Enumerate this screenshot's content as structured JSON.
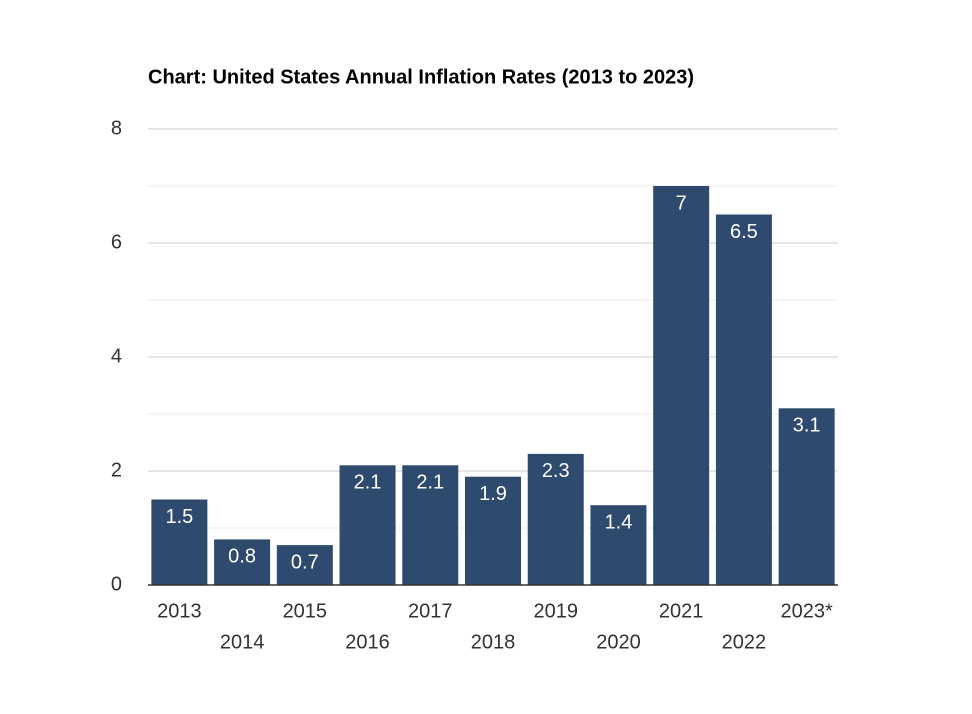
{
  "chart_data": {
    "type": "bar",
    "title": "Chart: United States Annual Inflation Rates (2013 to 2023)",
    "categories": [
      "2013",
      "2014",
      "2015",
      "2016",
      "2017",
      "2018",
      "2019",
      "2020",
      "2021",
      "2022",
      "2023*"
    ],
    "values": [
      1.5,
      0.8,
      0.7,
      2.1,
      2.1,
      1.9,
      2.3,
      1.4,
      7,
      6.5,
      3.1
    ],
    "color": "#2e4a6f",
    "ylim": [
      0,
      8
    ],
    "yticks": [
      0,
      2,
      4,
      6,
      8
    ],
    "minor_yticks": [
      1,
      3,
      5,
      7
    ],
    "grid": true
  }
}
